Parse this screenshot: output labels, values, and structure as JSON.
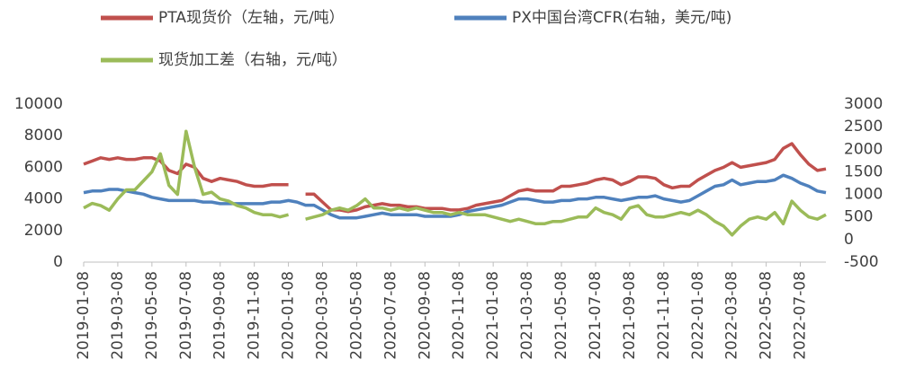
{
  "chart_data": {
    "type": "line",
    "categories": [
      "2019-01-08",
      null,
      null,
      null,
      "2019-03-08",
      null,
      null,
      null,
      "2019-05-08",
      null,
      null,
      null,
      "2019-07-08",
      null,
      null,
      null,
      "2019-09-08",
      null,
      null,
      null,
      "2019-11-08",
      null,
      null,
      null,
      "2020-01-08",
      null,
      null,
      null,
      "2020-03-08",
      null,
      null,
      null,
      "2020-05-08",
      null,
      null,
      null,
      "2020-07-08",
      null,
      null,
      null,
      "2020-09-08",
      null,
      null,
      null,
      "2020-11-08",
      null,
      null,
      null,
      "2021-01-08",
      null,
      null,
      null,
      "2021-03-08",
      null,
      null,
      null,
      "2021-05-08",
      null,
      null,
      null,
      "2021-07-08",
      null,
      null,
      null,
      "2021-09-08",
      null,
      null,
      null,
      "2021-11-08",
      null,
      null,
      null,
      "2022-01-08",
      null,
      null,
      null,
      "2022-03-08",
      null,
      null,
      null,
      "2022-05-08",
      null,
      null,
      null,
      "2022-07-08",
      null,
      null,
      null
    ],
    "series": [
      {
        "name": "PTA现货价（左轴，元/吨）",
        "color": "#c0504d",
        "axis": "y",
        "values": [
          6200,
          6400,
          6600,
          6500,
          6600,
          6500,
          6500,
          6600,
          6600,
          6400,
          5800,
          5600,
          6200,
          6000,
          5300,
          5100,
          5300,
          5200,
          5100,
          4900,
          4800,
          4800,
          4900,
          4900,
          4900,
          null,
          4300,
          4300,
          3800,
          3300,
          3300,
          3200,
          3300,
          3500,
          3600,
          3700,
          3600,
          3600,
          3500,
          3500,
          3400,
          3400,
          3400,
          3300,
          3300,
          3400,
          3600,
          3700,
          3800,
          3900,
          4200,
          4500,
          4600,
          4500,
          4500,
          4500,
          4800,
          4800,
          4900,
          5000,
          5200,
          5300,
          5200,
          4900,
          5100,
          5400,
          5400,
          5300,
          4900,
          4700,
          4800,
          4800,
          5200,
          5500,
          5800,
          6000,
          6300,
          6000,
          6100,
          6200,
          6300,
          6500,
          7200,
          7500,
          6800,
          6200,
          5800,
          5900
        ]
      },
      {
        "name": "PX中国台湾CFR(右轴，美元/吨)",
        "color": "#4f81bd",
        "axis": "y2",
        "values": [
          1040,
          1075,
          1075,
          1110,
          1110,
          1075,
          1040,
          1005,
          935,
          900,
          865,
          865,
          865,
          865,
          830,
          830,
          795,
          795,
          795,
          795,
          795,
          795,
          830,
          830,
          865,
          830,
          760,
          760,
          655,
          550,
          480,
          480,
          480,
          515,
          550,
          585,
          550,
          550,
          550,
          550,
          515,
          515,
          515,
          515,
          550,
          620,
          655,
          690,
          725,
          760,
          830,
          900,
          900,
          865,
          830,
          830,
          865,
          865,
          900,
          900,
          935,
          935,
          900,
          865,
          900,
          935,
          935,
          970,
          900,
          865,
          830,
          865,
          970,
          1075,
          1180,
          1215,
          1320,
          1215,
          1250,
          1285,
          1285,
          1320,
          1425,
          1355,
          1250,
          1180,
          1075,
          1040
        ]
      },
      {
        "name": "现货加工差（右轴，元/吨）",
        "color": "#9bbb59",
        "axis": "y2",
        "values": [
          700,
          800,
          750,
          650,
          900,
          1100,
          1100,
          1300,
          1500,
          1900,
          1200,
          1000,
          2400,
          1600,
          1000,
          1050,
          900,
          850,
          750,
          700,
          600,
          550,
          550,
          500,
          550,
          null,
          450,
          500,
          550,
          650,
          700,
          650,
          750,
          900,
          700,
          700,
          650,
          700,
          650,
          700,
          650,
          600,
          600,
          550,
          600,
          550,
          550,
          550,
          500,
          450,
          400,
          450,
          400,
          350,
          350,
          400,
          400,
          450,
          500,
          500,
          700,
          600,
          550,
          450,
          700,
          750,
          550,
          500,
          500,
          550,
          600,
          550,
          650,
          550,
          400,
          300,
          100,
          300,
          450,
          500,
          450,
          600,
          350,
          850,
          650,
          500,
          450,
          550
        ]
      }
    ],
    "ylim": [
      0,
      10000
    ],
    "yticks": [
      0,
      2000,
      4000,
      6000,
      8000,
      10000
    ],
    "y2lim": [
      -500,
      3000
    ],
    "y2ticks": [
      -500,
      0,
      500,
      1000,
      1500,
      2000,
      2500,
      3000
    ]
  }
}
